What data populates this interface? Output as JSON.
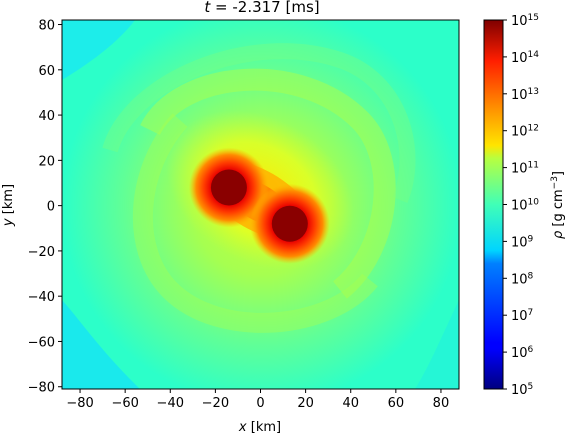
{
  "chart_data": {
    "type": "heatmap",
    "title_var": "t",
    "title_eq": "=",
    "title_value": "-2.317",
    "title_unit": "[ms]",
    "xlabel_var": "x",
    "xlabel_unit": "[km]",
    "ylabel_var": "y",
    "ylabel_unit": "[km]",
    "xlim": [
      -88,
      88
    ],
    "ylim": [
      -81,
      82
    ],
    "xticks": [
      -80,
      -60,
      -40,
      -20,
      0,
      20,
      40,
      60,
      80
    ],
    "yticks": [
      -80,
      -60,
      -40,
      -20,
      0,
      20,
      40,
      60,
      80
    ],
    "xtick_labels": [
      "−80",
      "−60",
      "−40",
      "−20",
      "0",
      "20",
      "40",
      "60",
      "80"
    ],
    "ytick_labels": [
      "−80",
      "−60",
      "−40",
      "−20",
      "0",
      "20",
      "40",
      "60",
      "80"
    ],
    "colorbar": {
      "label_var": "ρ",
      "label_unit_pre": "[g cm",
      "label_unit_exp": "−3",
      "label_unit_post": "]",
      "scale": "log",
      "range": [
        5,
        15
      ],
      "tick_base": "10",
      "tick_exponents": [
        "15",
        "14",
        "13",
        "12",
        "11",
        "10",
        "9",
        "8",
        "7",
        "6",
        "5"
      ],
      "colormap": "jet"
    },
    "stars": [
      {
        "x": -14,
        "y": 8,
        "log_rho_peak": 15
      },
      {
        "x": 13,
        "y": -8,
        "log_rho_peak": 15
      }
    ],
    "background_log_rho": 9
  }
}
